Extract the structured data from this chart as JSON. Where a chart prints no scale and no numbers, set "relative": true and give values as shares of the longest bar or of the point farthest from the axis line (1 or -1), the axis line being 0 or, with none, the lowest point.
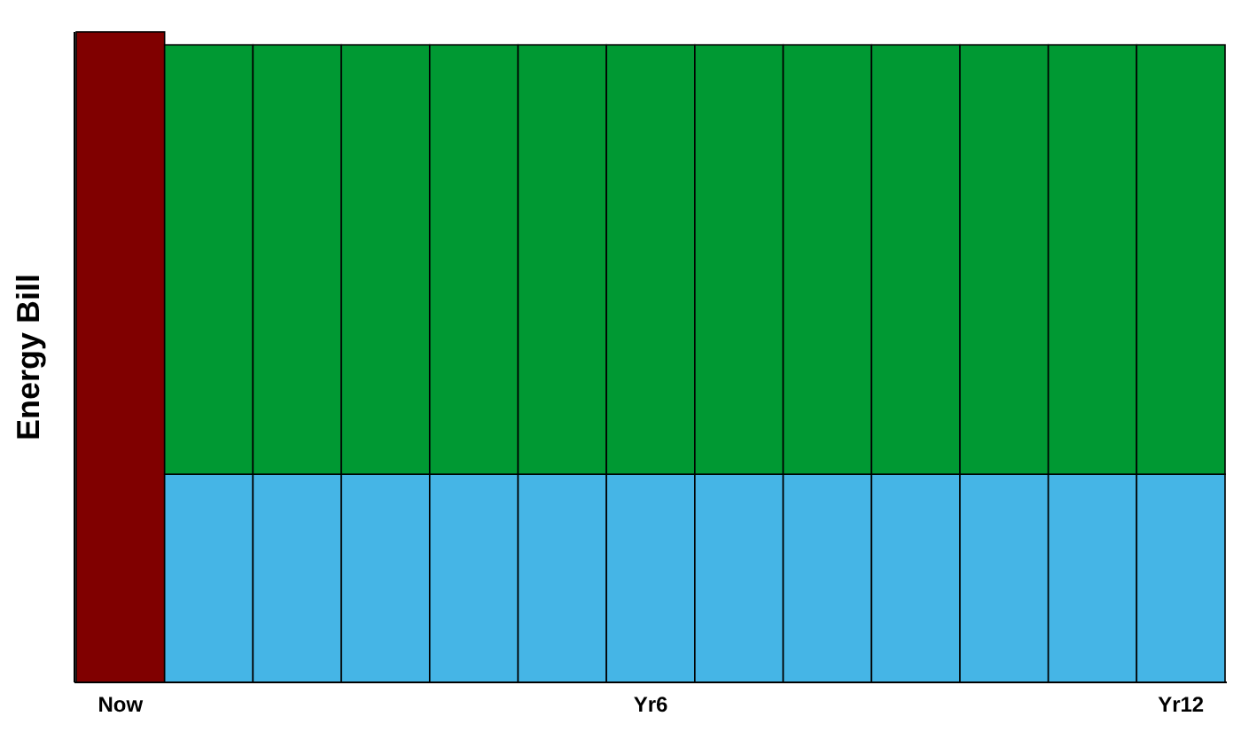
{
  "chart_data": {
    "type": "bar",
    "ylabel": "Energy Bill",
    "relative": true,
    "stacked": true,
    "categories": [
      "Now",
      null,
      null,
      null,
      null,
      null,
      "Yr6",
      null,
      null,
      null,
      null,
      null,
      "Yr12"
    ],
    "series": [
      {
        "color": "#800000",
        "values": [
          1,
          null,
          null,
          null,
          null,
          null,
          null,
          null,
          null,
          null,
          null,
          null,
          null
        ]
      },
      {
        "color": "#45b5e6",
        "values": [
          null,
          0.32,
          0.32,
          0.32,
          0.32,
          0.32,
          0.32,
          0.32,
          0.32,
          0.32,
          0.32,
          0.32,
          0.32
        ]
      },
      {
        "color": "#009933",
        "values": [
          null,
          0.66,
          0.66,
          0.66,
          0.66,
          0.66,
          0.66,
          0.66,
          0.66,
          0.66,
          0.66,
          0.66,
          0.66
        ]
      }
    ]
  }
}
